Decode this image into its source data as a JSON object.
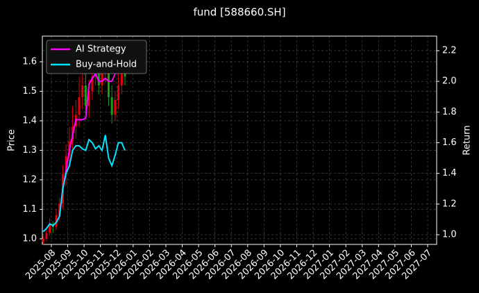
{
  "chart_data": {
    "type": "candlestick",
    "title": "fund [588660.SH]",
    "y_label": "Price",
    "y2_label": "Return",
    "x": [
      -0.5,
      -0.3,
      -0.1,
      0.1,
      0.3,
      0.5,
      0.7,
      0.9,
      1.1,
      1.3,
      1.5,
      1.7,
      1.9,
      2.1,
      2.3,
      2.5,
      2.7,
      2.9,
      3.1,
      3.3,
      3.5,
      3.7,
      3.9,
      4.1,
      4.3,
      4.5
    ],
    "open": [
      0.99,
      1.0,
      1.02,
      1.05,
      1.04,
      1.08,
      1.12,
      1.22,
      1.28,
      1.33,
      1.38,
      1.42,
      1.48,
      1.52,
      1.45,
      1.5,
      1.55,
      1.58,
      1.52,
      1.56,
      1.6,
      1.48,
      1.42,
      1.47,
      1.52,
      1.58
    ],
    "high": [
      1.01,
      1.03,
      1.07,
      1.06,
      1.1,
      1.14,
      1.25,
      1.32,
      1.38,
      1.45,
      1.47,
      1.55,
      1.6,
      1.58,
      1.54,
      1.6,
      1.63,
      1.62,
      1.6,
      1.66,
      1.64,
      1.52,
      1.5,
      1.56,
      1.62,
      1.62
    ],
    "low": [
      0.98,
      0.99,
      1.01,
      1.02,
      1.03,
      1.06,
      1.1,
      1.18,
      1.24,
      1.29,
      1.34,
      1.38,
      1.44,
      1.42,
      1.41,
      1.47,
      1.52,
      1.49,
      1.49,
      1.53,
      1.45,
      1.39,
      1.4,
      1.44,
      1.49,
      1.52
    ],
    "close": [
      1.0,
      1.02,
      1.05,
      1.04,
      1.08,
      1.12,
      1.22,
      1.28,
      1.33,
      1.38,
      1.42,
      1.48,
      1.52,
      1.45,
      1.5,
      1.55,
      1.58,
      1.52,
      1.56,
      1.6,
      1.48,
      1.42,
      1.47,
      1.52,
      1.58,
      1.55
    ],
    "up_color": "#e8000b",
    "down_color": "#1a9e1a",
    "series": [
      {
        "name": "AI Strategy",
        "color": "#ff00ff",
        "axis": "y2",
        "values": [
          1.02,
          1.04,
          1.07,
          1.06,
          1.08,
          1.12,
          1.3,
          1.42,
          1.55,
          1.65,
          1.75,
          1.75,
          1.75,
          1.76,
          1.98,
          2.02,
          2.05,
          2.0,
          2.0,
          2.02,
          2.0,
          2.0,
          2.05,
          2.15,
          2.2,
          2.1
        ]
      },
      {
        "name": "Buy-and-Hold",
        "color": "#00e5ff",
        "axis": "y2",
        "values": [
          1.02,
          1.04,
          1.07,
          1.06,
          1.08,
          1.12,
          1.3,
          1.4,
          1.45,
          1.55,
          1.58,
          1.58,
          1.56,
          1.55,
          1.62,
          1.6,
          1.56,
          1.58,
          1.55,
          1.65,
          1.5,
          1.45,
          1.52,
          1.6,
          1.6,
          1.55
        ]
      }
    ],
    "xlim": [
      -0.55,
      23.55
    ],
    "xticks": [
      {
        "value": 0,
        "label": "2025-08"
      },
      {
        "value": 1,
        "label": "2025-09"
      },
      {
        "value": 2,
        "label": "2025-10"
      },
      {
        "value": 3,
        "label": "2025-11"
      },
      {
        "value": 4,
        "label": "2025-12"
      },
      {
        "value": 5,
        "label": "2026-01"
      },
      {
        "value": 6,
        "label": "2026-02"
      },
      {
        "value": 7,
        "label": "2026-03"
      },
      {
        "value": 8,
        "label": "2026-04"
      },
      {
        "value": 9,
        "label": "2026-05"
      },
      {
        "value": 10,
        "label": "2026-06"
      },
      {
        "value": 11,
        "label": "2026-07"
      },
      {
        "value": 12,
        "label": "2026-08"
      },
      {
        "value": 13,
        "label": "2026-09"
      },
      {
        "value": 14,
        "label": "2026-10"
      },
      {
        "value": 15,
        "label": "2026-11"
      },
      {
        "value": 16,
        "label": "2026-12"
      },
      {
        "value": 17,
        "label": "2027-01"
      },
      {
        "value": 18,
        "label": "2027-02"
      },
      {
        "value": 19,
        "label": "2027-03"
      },
      {
        "value": 20,
        "label": "2027-04"
      },
      {
        "value": 21,
        "label": "2027-05"
      },
      {
        "value": 22,
        "label": "2027-06"
      },
      {
        "value": 23,
        "label": "2027-07"
      }
    ],
    "ylim": [
      0.981,
      1.687
    ],
    "yticks": [
      {
        "value": 1,
        "label": "1.0"
      },
      1.1,
      1.2,
      1.3,
      1.4,
      1.5,
      1.6
    ],
    "y2lim": [
      0.937,
      2.295
    ],
    "y2ticks": [
      {
        "value": 1,
        "label": "1.0"
      },
      1.2,
      1.4,
      1.6,
      1.8,
      {
        "value": 2,
        "label": "2.0"
      },
      2.2
    ],
    "grid": true,
    "legend": "upper left"
  }
}
